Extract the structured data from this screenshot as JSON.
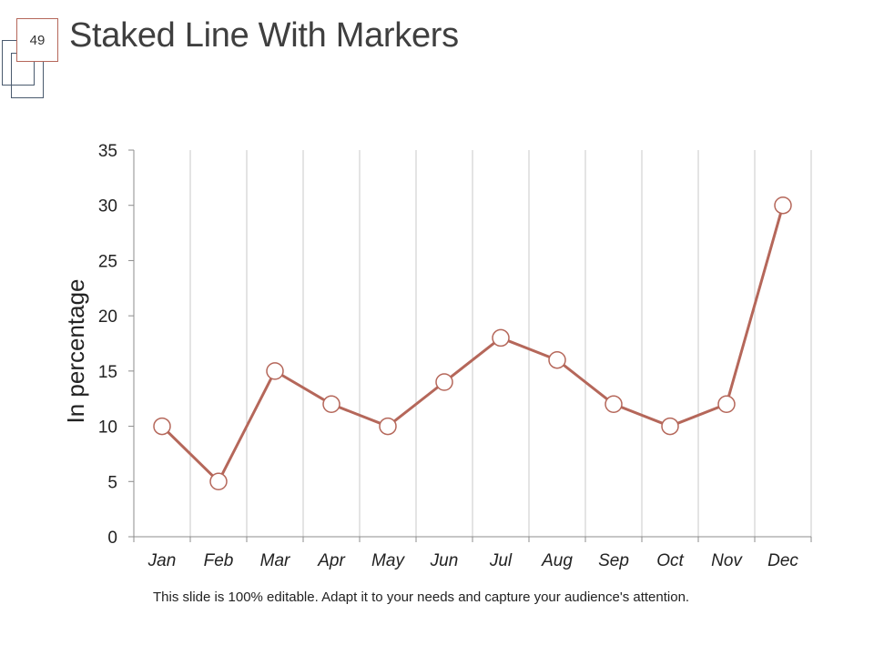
{
  "slide": {
    "number": "49",
    "title": "Staked Line With Markers",
    "footnote": "This slide is 100% editable. Adapt it to your needs and capture your audience's attention."
  },
  "colors": {
    "line": "#b5675a",
    "marker_fill": "#ffffff",
    "gridline": "#c8c8c8",
    "axis": "#8c8c8c"
  },
  "chart_data": {
    "type": "line",
    "title": "",
    "xlabel": "",
    "ylabel": "In percentage",
    "categories": [
      "Jan",
      "Feb",
      "Mar",
      "Apr",
      "May",
      "Jun",
      "Jul",
      "Aug",
      "Sep",
      "Oct",
      "Nov",
      "Dec"
    ],
    "series": [
      {
        "values": [
          10,
          5,
          15,
          12,
          10,
          14,
          18,
          16,
          12,
          10,
          12,
          30
        ]
      }
    ],
    "ylim": [
      0,
      35
    ],
    "yticks": [
      0,
      5,
      10,
      15,
      20,
      25,
      30,
      35
    ],
    "markers": "circle",
    "grid": "vertical",
    "legend": "none"
  }
}
